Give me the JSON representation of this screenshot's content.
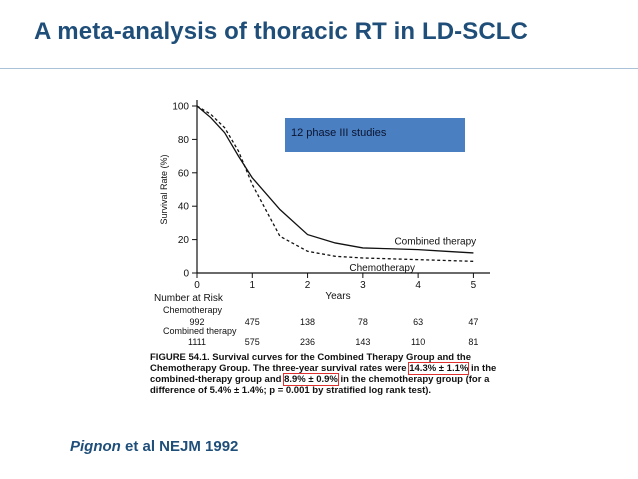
{
  "slide": {
    "title": "A meta-analysis of thoracic RT in LD-SCLC",
    "callout": "12 phase III studies",
    "citation_author": "Pignon",
    "citation_rest": " et al NEJM 1992"
  },
  "risk_table": {
    "header": "Number at Risk",
    "rows": [
      {
        "label": "Chemotherapy",
        "values": [
          "992",
          "475",
          "138",
          "78",
          "63",
          "47"
        ]
      },
      {
        "label": "Combined therapy",
        "values": [
          "1111",
          "575",
          "236",
          "143",
          "110",
          "81"
        ]
      }
    ]
  },
  "caption": {
    "label": "FIGURE 54.1.",
    "part1": " Survival curves for the Combined Therapy Group and the Chemotherapy Group. The three-year survival rates were ",
    "hl1": "14.3% ± 1.1%",
    "part2": " in the combined-therapy group and ",
    "hl2": "8.9% ± 0.9%",
    "part3": " in the chemotherapy group (for a difference of 5.4% ± 1.4%; p = 0.001 by stratified log rank test)."
  },
  "colors": {
    "title": "#1f4e79",
    "callout_bg": "#4a7fc1",
    "highlight_box": "#e03030"
  },
  "chart_data": {
    "type": "line",
    "title": "",
    "xlabel": "Years",
    "ylabel": "Survival Rate (%)",
    "xlim": [
      0,
      5.3
    ],
    "ylim": [
      0,
      100
    ],
    "xticks": [
      0,
      1,
      2,
      3,
      4,
      5
    ],
    "yticks": [
      0,
      20,
      40,
      60,
      80,
      100
    ],
    "grid": false,
    "series": [
      {
        "name": "Combined therapy",
        "style": "solid",
        "x": [
          0,
          0.25,
          0.5,
          0.75,
          1.0,
          1.5,
          2.0,
          2.5,
          3.0,
          3.5,
          4.0,
          4.5,
          5.0
        ],
        "y": [
          100,
          93,
          84,
          70,
          57,
          38,
          23,
          18,
          15,
          14.5,
          14,
          13,
          12
        ]
      },
      {
        "name": "Chemotherapy",
        "style": "dashed",
        "x": [
          0,
          0.25,
          0.5,
          0.75,
          1.0,
          1.5,
          2.0,
          2.5,
          3.0,
          3.5,
          4.0,
          4.5,
          5.0
        ],
        "y": [
          100,
          95,
          87,
          73,
          53,
          22,
          13,
          10,
          9,
          8.5,
          8,
          7.5,
          7
        ]
      }
    ]
  }
}
